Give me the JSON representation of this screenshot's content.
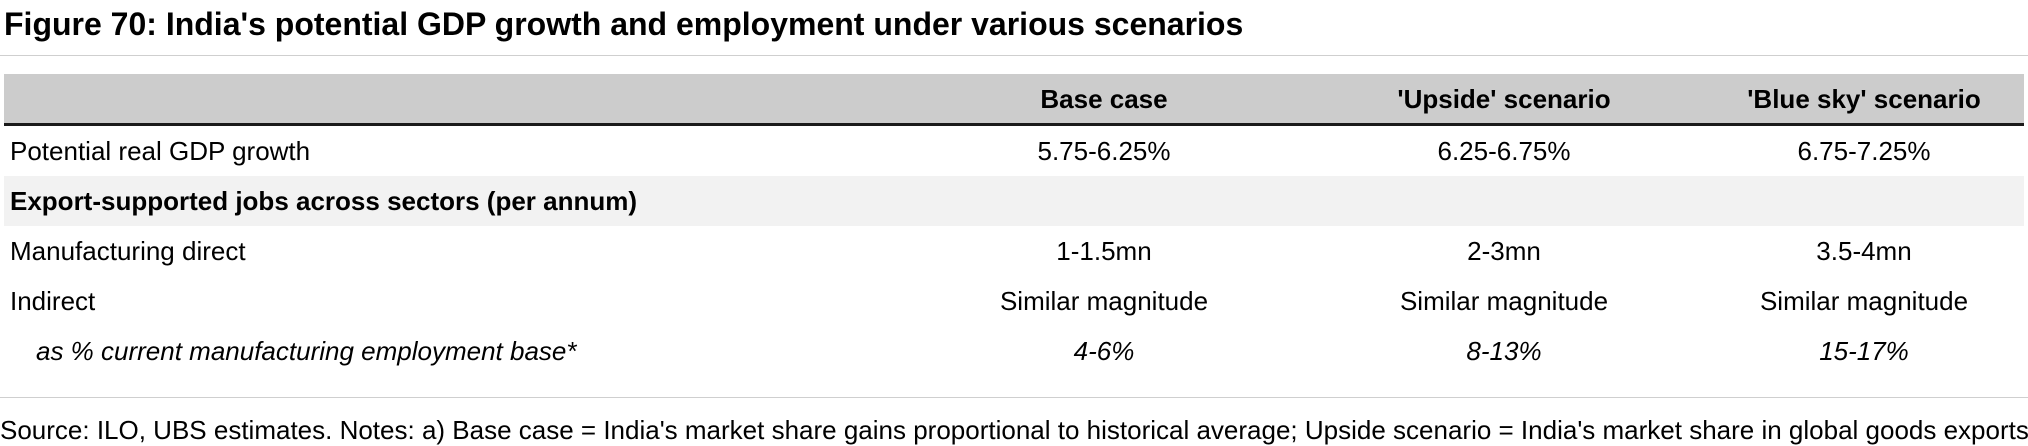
{
  "figure": {
    "title": "Figure 70: India's potential GDP growth and employment under various scenarios"
  },
  "table": {
    "columns": [
      "Base case",
      "'Upside' scenario",
      "'Blue sky' scenario"
    ],
    "rows": [
      {
        "label": "Potential real  GDP growth",
        "values": [
          "5.75-6.25%",
          "6.25-6.75%",
          "6.75-7.25%"
        ]
      },
      {
        "label": "Export-supported jobs across sectors (per annum)",
        "values": [
          "",
          "",
          ""
        ]
      },
      {
        "label": "Manufacturing direct",
        "values": [
          "1-1.5mn",
          "2-3mn",
          "3.5-4mn"
        ]
      },
      {
        "label": "Indirect",
        "values": [
          "Similar magnitude",
          "Similar magnitude",
          "Similar magnitude"
        ]
      },
      {
        "label": "as % current manufacturing employment base*",
        "values": [
          "4-6%",
          "8-13%",
          "15-17%"
        ]
      }
    ]
  },
  "source": "Source: ILO, UBS estimates. Notes: a) Base case = India's market share gains proportional to historical average; Upside scenario = India's market share in global goods exports"
}
